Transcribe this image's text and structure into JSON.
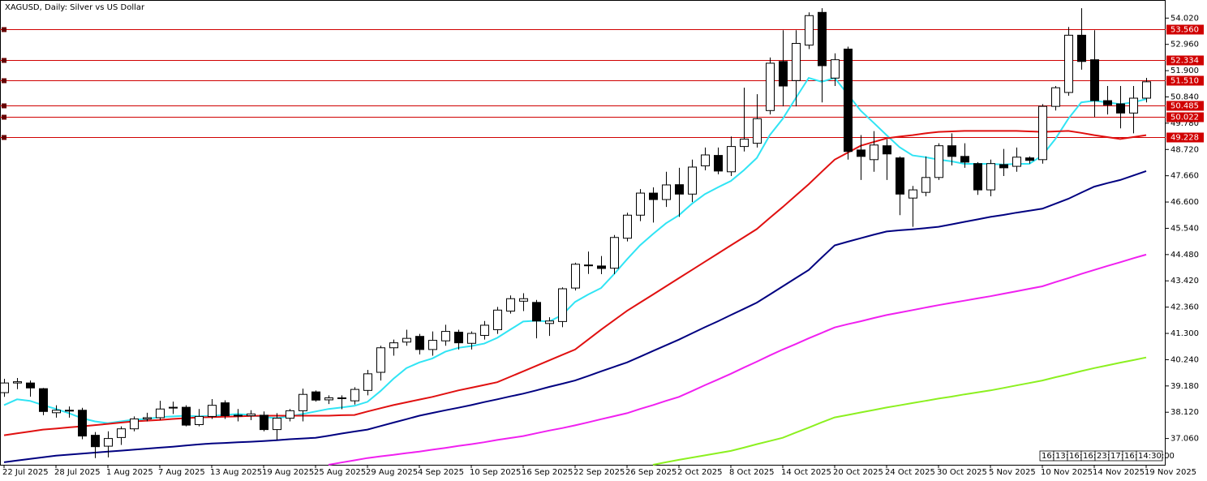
{
  "chart_data": {
    "type": "candlestick",
    "title": "XAGUSD, Daily:  Silver vs US Dollar",
    "categories": [
      "22 Jul 2025",
      null,
      null,
      null,
      "28 Jul 2025",
      null,
      null,
      null,
      "1 Aug 2025",
      null,
      null,
      null,
      "7 Aug 2025",
      null,
      null,
      null,
      "13 Aug 2025",
      null,
      null,
      null,
      "19 Aug 2025",
      null,
      null,
      null,
      "25 Aug 2025",
      null,
      null,
      null,
      "29 Aug 2025",
      null,
      null,
      null,
      "4 Sep 2025",
      null,
      null,
      null,
      "10 Sep 2025",
      null,
      null,
      null,
      "16 Sep 2025",
      null,
      null,
      null,
      "22 Sep 2025",
      null,
      null,
      null,
      "26 Sep 2025",
      null,
      null,
      null,
      "2 Oct 2025",
      null,
      null,
      null,
      "8 Oct 2025",
      null,
      null,
      null,
      "14 Oct 2025",
      null,
      null,
      null,
      "20 Oct 2025",
      null,
      null,
      null,
      "24 Oct 2025",
      null,
      null,
      null,
      "30 Oct 2025",
      null,
      null,
      null,
      "5 Nov 2025",
      null,
      null,
      null,
      "10 Nov 2025",
      null,
      null,
      null,
      "14 Nov 2025",
      null,
      null,
      null,
      "19 Nov 2025"
    ],
    "open": [
      38.91,
      39.3,
      39.3,
      39.07,
      38.1,
      38.18,
      38.2,
      37.19,
      36.75,
      37.1,
      37.45,
      37.85,
      37.9,
      38.3,
      38.32,
      37.62,
      37.95,
      38.5,
      38.0,
      37.98,
      38.0,
      37.42,
      37.88,
      38.18,
      38.94,
      38.62,
      38.68,
      38.58,
      39.0,
      39.73,
      40.72,
      40.95,
      41.18,
      40.65,
      41.0,
      41.35,
      40.9,
      41.22,
      41.45,
      42.2,
      42.6,
      42.55,
      41.7,
      41.78,
      43.13,
      44.05,
      44.02,
      43.93,
      45.14,
      46.07,
      46.96,
      46.7,
      47.3,
      46.92,
      48.06,
      48.48,
      47.82,
      48.84,
      48.97,
      50.29,
      52.27,
      51.5,
      52.93,
      54.25,
      51.6,
      52.77,
      48.7,
      48.31,
      48.87,
      48.38,
      46.76,
      46.99,
      47.59,
      48.87,
      48.44,
      48.15,
      47.09,
      48.11,
      48.04,
      48.38,
      48.31,
      50.46,
      51.02,
      53.33,
      52.34,
      50.69,
      50.56,
      50.19,
      50.79
    ],
    "high": [
      39.47,
      39.5,
      39.4,
      39.1,
      38.4,
      38.35,
      38.3,
      37.32,
      37.35,
      37.55,
      37.95,
      38.1,
      38.58,
      38.55,
      38.4,
      38.25,
      38.65,
      38.6,
      38.25,
      38.2,
      38.15,
      38.08,
      38.25,
      39.07,
      39.0,
      38.8,
      38.8,
      39.13,
      39.83,
      40.8,
      41.05,
      41.45,
      41.28,
      41.38,
      41.65,
      41.45,
      41.38,
      41.8,
      42.37,
      42.83,
      42.92,
      42.65,
      41.95,
      43.16,
      44.15,
      44.6,
      44.42,
      45.27,
      46.17,
      47.12,
      47.19,
      47.82,
      47.98,
      48.31,
      48.8,
      48.8,
      49.24,
      51.21,
      50.95,
      52.43,
      53.53,
      53.53,
      54.25,
      54.42,
      52.6,
      52.87,
      49.3,
      49.46,
      49.13,
      48.44,
      47.25,
      48.44,
      48.97,
      49.37,
      48.97,
      48.21,
      48.31,
      48.74,
      48.8,
      48.44,
      50.55,
      51.28,
      53.66,
      54.42,
      53.53,
      51.28,
      51.28,
      51.28,
      51.61
    ],
    "low": [
      38.74,
      39.05,
      38.75,
      38.0,
      37.9,
      37.9,
      37.03,
      36.27,
      36.3,
      36.8,
      37.35,
      37.75,
      37.8,
      38.05,
      37.55,
      37.55,
      37.85,
      37.85,
      37.75,
      37.8,
      37.35,
      37.0,
      37.75,
      37.75,
      38.55,
      38.45,
      38.24,
      38.43,
      38.8,
      39.4,
      40.4,
      40.8,
      40.45,
      40.4,
      40.8,
      40.65,
      40.65,
      41.05,
      41.28,
      42.1,
      42.2,
      41.1,
      41.2,
      41.55,
      43.03,
      43.7,
      43.69,
      43.69,
      45.01,
      45.83,
      45.77,
      46.4,
      46.0,
      46.6,
      47.88,
      47.72,
      47.65,
      48.64,
      48.8,
      50.13,
      50.46,
      50.46,
      52.77,
      50.62,
      51.28,
      48.31,
      47.49,
      47.82,
      47.49,
      46.07,
      45.6,
      46.83,
      47.49,
      48.08,
      47.98,
      46.89,
      46.83,
      47.65,
      47.82,
      48.15,
      48.15,
      50.29,
      50.89,
      51.94,
      50.03,
      50.13,
      49.57,
      49.37,
      50.62
    ],
    "close": [
      39.3,
      39.35,
      39.1,
      38.15,
      38.2,
      38.2,
      37.16,
      36.73,
      37.06,
      37.45,
      37.85,
      37.9,
      38.25,
      38.32,
      37.6,
      37.95,
      38.4,
      37.98,
      37.98,
      38.05,
      37.42,
      37.88,
      38.18,
      38.84,
      38.61,
      38.7,
      38.7,
      39.04,
      39.67,
      40.72,
      40.92,
      41.1,
      40.65,
      41.02,
      41.38,
      40.92,
      41.3,
      41.63,
      42.24,
      42.7,
      42.7,
      41.8,
      41.8,
      43.1,
      44.09,
      44.06,
      43.92,
      45.17,
      46.07,
      46.96,
      46.7,
      47.29,
      46.92,
      48.01,
      48.5,
      47.85,
      48.84,
      49.14,
      49.96,
      52.2,
      51.28,
      53.0,
      54.12,
      52.1,
      52.34,
      48.64,
      48.44,
      48.9,
      48.54,
      46.92,
      47.09,
      47.59,
      48.87,
      48.44,
      48.21,
      47.09,
      48.15,
      47.98,
      48.41,
      48.28,
      50.46,
      51.21,
      53.33,
      52.27,
      50.69,
      50.52,
      50.19,
      50.79,
      51.45
    ],
    "up_color": "#ffffff",
    "down_color": "#000000",
    "lines": [
      {
        "color": "#30e4f4",
        "values": [
          38.41,
          38.64,
          38.58,
          38.41,
          38.25,
          38.08,
          37.88,
          37.75,
          37.68,
          37.75,
          37.82,
          37.85,
          37.92,
          37.95,
          37.98,
          37.95,
          37.98,
          38.01,
          38.05,
          38.01,
          37.92,
          37.88,
          37.95,
          38.05,
          38.15,
          38.25,
          38.31,
          38.38,
          38.54,
          38.97,
          39.47,
          39.9,
          40.13,
          40.29,
          40.56,
          40.72,
          40.79,
          40.89,
          41.12,
          41.45,
          41.78,
          41.81,
          41.78,
          42.04,
          42.57,
          42.87,
          43.13,
          43.69,
          44.29,
          44.85,
          45.31,
          45.74,
          46.07,
          46.53,
          46.92,
          47.19,
          47.45,
          47.88,
          48.38,
          49.3,
          49.96,
          50.79,
          51.61,
          51.45,
          51.61,
          50.95,
          50.29,
          49.8,
          49.3,
          48.81,
          48.48,
          48.41,
          48.31,
          48.24,
          48.14,
          48.14,
          48.14,
          48.11,
          48.14,
          48.14,
          48.48,
          49.14,
          49.96,
          50.62,
          50.69,
          50.62,
          50.55,
          50.62,
          50.75
        ]
      },
      {
        "color": "#e01010",
        "values": [
          37.19,
          37.27,
          37.34,
          37.42,
          37.46,
          37.51,
          37.55,
          37.6,
          37.65,
          37.7,
          37.75,
          37.78,
          37.81,
          37.85,
          37.88,
          37.91,
          37.92,
          37.94,
          37.95,
          37.97,
          37.98,
          37.98,
          37.98,
          37.98,
          37.98,
          37.98,
          38.0,
          38.01,
          38.15,
          38.28,
          38.41,
          38.52,
          38.63,
          38.74,
          38.87,
          39.0,
          39.11,
          39.22,
          39.33,
          39.55,
          39.77,
          39.99,
          40.21,
          40.43,
          40.65,
          41.05,
          41.45,
          41.83,
          42.21,
          42.54,
          42.87,
          43.2,
          43.53,
          43.86,
          44.19,
          44.52,
          44.85,
          45.18,
          45.51,
          45.96,
          46.4,
          46.86,
          47.32,
          47.82,
          48.31,
          48.59,
          48.87,
          49.02,
          49.17,
          49.24,
          49.3,
          49.37,
          49.43,
          49.45,
          49.47,
          49.47,
          49.47,
          49.47,
          49.47,
          49.45,
          49.43,
          49.45,
          49.47,
          49.39,
          49.3,
          49.22,
          49.14,
          49.22,
          49.3
        ]
      },
      {
        "color": "#000080",
        "values": [
          36.1,
          36.17,
          36.24,
          36.3,
          36.37,
          36.41,
          36.45,
          36.49,
          36.53,
          36.57,
          36.61,
          36.65,
          36.69,
          36.73,
          36.78,
          36.82,
          36.86,
          36.88,
          36.91,
          36.93,
          36.96,
          36.99,
          37.03,
          37.06,
          37.09,
          37.17,
          37.26,
          37.34,
          37.42,
          37.56,
          37.7,
          37.84,
          37.98,
          38.09,
          38.2,
          38.3,
          38.41,
          38.53,
          38.64,
          38.76,
          38.87,
          39.0,
          39.14,
          39.27,
          39.4,
          39.58,
          39.77,
          39.95,
          40.13,
          40.36,
          40.59,
          40.82,
          41.05,
          41.3,
          41.55,
          41.79,
          42.04,
          42.29,
          42.54,
          42.87,
          43.2,
          43.53,
          43.86,
          44.36,
          44.85,
          45.0,
          45.14,
          45.28,
          45.41,
          45.46,
          45.5,
          45.55,
          45.6,
          45.7,
          45.8,
          45.9,
          46.0,
          46.08,
          46.17,
          46.25,
          46.33,
          46.53,
          46.73,
          46.98,
          47.22,
          47.36,
          47.49,
          47.67,
          47.85
        ]
      },
      {
        "color": "#f020f0",
        "values": [
          null,
          null,
          null,
          null,
          null,
          null,
          null,
          null,
          null,
          null,
          null,
          null,
          null,
          null,
          null,
          null,
          null,
          null,
          null,
          null,
          null,
          null,
          null,
          null,
          null,
          36.0,
          36.09,
          36.18,
          36.27,
          36.34,
          36.4,
          36.47,
          36.53,
          36.61,
          36.68,
          36.76,
          36.83,
          36.91,
          37.0,
          37.08,
          37.16,
          37.27,
          37.38,
          37.48,
          37.59,
          37.71,
          37.84,
          37.96,
          38.08,
          38.25,
          38.41,
          38.58,
          38.74,
          38.97,
          39.21,
          39.44,
          39.67,
          39.92,
          40.16,
          40.41,
          40.65,
          40.87,
          41.1,
          41.32,
          41.54,
          41.67,
          41.79,
          41.92,
          42.04,
          42.14,
          42.24,
          42.34,
          42.44,
          42.53,
          42.62,
          42.71,
          42.8,
          42.9,
          43.0,
          43.1,
          43.2,
          43.37,
          43.53,
          43.7,
          43.86,
          44.02,
          44.17,
          44.33,
          44.48
        ]
      },
      {
        "color": "#8cf020",
        "values": [
          null,
          null,
          null,
          null,
          null,
          null,
          null,
          null,
          null,
          null,
          null,
          null,
          null,
          null,
          null,
          null,
          null,
          null,
          null,
          null,
          null,
          null,
          null,
          null,
          null,
          null,
          null,
          null,
          null,
          null,
          null,
          null,
          null,
          null,
          null,
          null,
          null,
          null,
          null,
          null,
          null,
          null,
          null,
          null,
          null,
          null,
          null,
          null,
          null,
          null,
          36.0,
          36.1,
          36.2,
          36.29,
          36.38,
          36.47,
          36.56,
          36.69,
          36.83,
          36.96,
          37.09,
          37.3,
          37.5,
          37.71,
          37.91,
          38.01,
          38.11,
          38.21,
          38.31,
          38.4,
          38.49,
          38.58,
          38.67,
          38.75,
          38.84,
          38.92,
          39.0,
          39.1,
          39.2,
          39.3,
          39.4,
          39.53,
          39.65,
          39.78,
          39.9,
          40.01,
          40.12,
          40.22,
          40.33
        ]
      }
    ],
    "levels": [
      {
        "value": 53.56,
        "label": "53.560"
      },
      {
        "value": 52.334,
        "label": "52.334"
      },
      {
        "value": 51.51,
        "label": "51.510"
      },
      {
        "value": 50.485,
        "label": "50.485"
      },
      {
        "value": 50.022,
        "label": "50.022"
      },
      {
        "value": 49.228,
        "label": "49.228"
      }
    ],
    "level_color": "#d00000",
    "ylim": [
      36.0,
      54.75
    ],
    "yticks": [
      {
        "value": 54.02,
        "label": "54.020"
      },
      {
        "value": 52.96,
        "label": "52.960"
      },
      {
        "value": 51.9,
        "label": "51.900"
      },
      {
        "value": 50.84,
        "label": "50.840"
      },
      {
        "value": 49.78,
        "label": "49.780"
      },
      {
        "value": 48.72,
        "label": "48.720"
      },
      {
        "value": 47.66,
        "label": "47.660"
      },
      {
        "value": 46.6,
        "label": "46.600"
      },
      {
        "value": 45.54,
        "label": "45.540"
      },
      {
        "value": 44.48,
        "label": "44.480"
      },
      {
        "value": 43.42,
        "label": "43.420"
      },
      {
        "value": 42.36,
        "label": "42.360"
      },
      {
        "value": 41.3,
        "label": "41.300"
      },
      {
        "value": 40.24,
        "label": "40.240"
      },
      {
        "value": 39.18,
        "label": "39.180"
      },
      {
        "value": 38.12,
        "label": "38.120"
      },
      {
        "value": 37.06,
        "label": "37.060"
      }
    ],
    "grid": false,
    "time_boxes": [
      "16:",
      "13:",
      "16:",
      "16:",
      "23:",
      "17:",
      "16:",
      "14:30:00"
    ]
  }
}
